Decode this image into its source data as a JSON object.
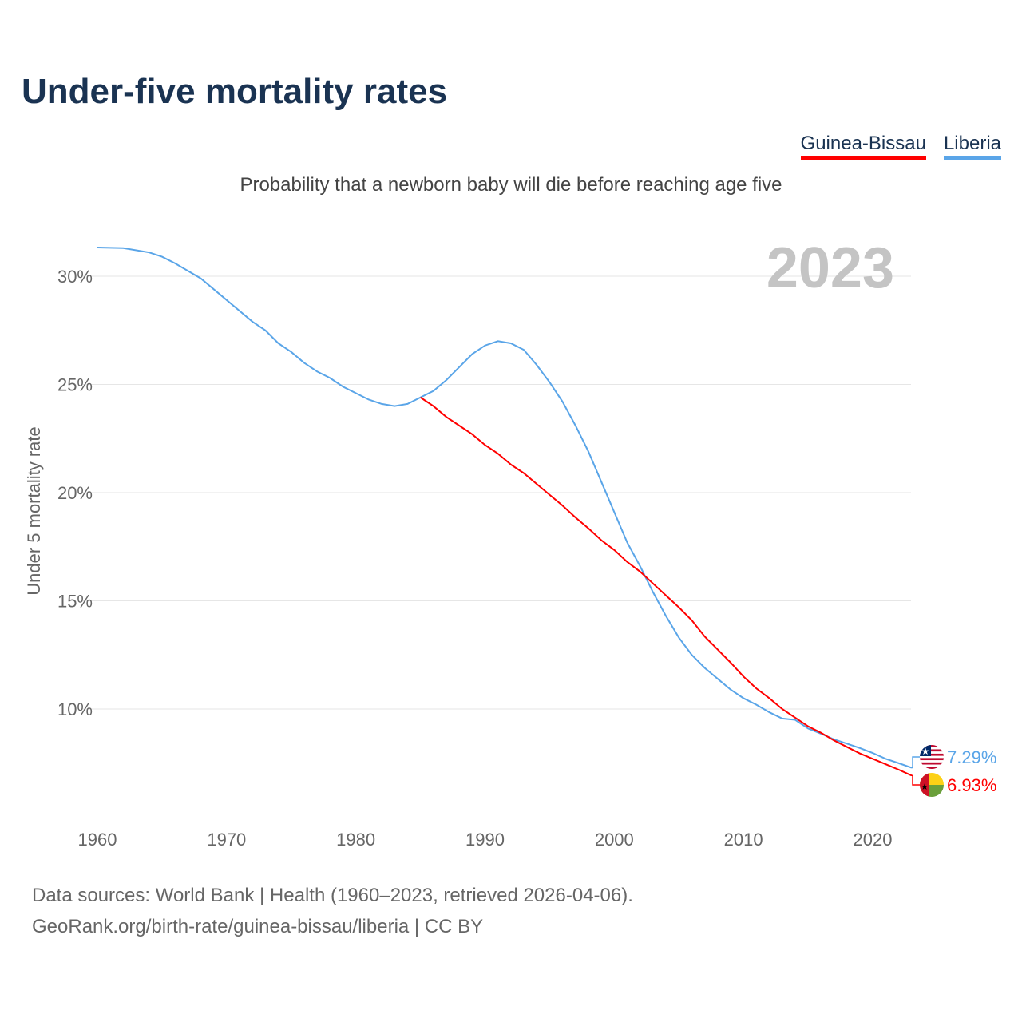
{
  "title": "Under-five mortality rates",
  "subtitle": "Probability that a newborn baby will die before reaching age five",
  "year_label": "2023",
  "footer": {
    "line1": "Data sources: World Bank | Health (1960–2023, retrieved 2026-04-06).",
    "line2": "GeoRank.org/birth-rate/guinea-bissau/liberia | CC BY"
  },
  "chart_data": {
    "type": "line",
    "title": "Under-five mortality rates",
    "xlabel": "",
    "ylabel": "Under 5 mortality rate",
    "xlim": [
      1960,
      2023
    ],
    "ylim": [
      6,
      32
    ],
    "xticks": [
      1960,
      1970,
      1980,
      1990,
      2000,
      2010,
      2020
    ],
    "xtick_labels": [
      "1960",
      "1970",
      "1980",
      "1990",
      "2000",
      "2010",
      "2020"
    ],
    "yticks": [
      10,
      15,
      20,
      25,
      30
    ],
    "ytick_labels": [
      "10%",
      "15%",
      "20%",
      "25%",
      "30%"
    ],
    "legend": "top-right",
    "series": [
      {
        "name": "Guinea-Bissau",
        "color": "#ff0000",
        "end_label": "6.93%",
        "x": [
          1985,
          1986,
          1987,
          1988,
          1989,
          1990,
          1991,
          1992,
          1993,
          1994,
          1995,
          1996,
          1997,
          1998,
          1999,
          2000,
          2001,
          2002,
          2003,
          2004,
          2005,
          2006,
          2007,
          2008,
          2009,
          2010,
          2011,
          2012,
          2013,
          2014,
          2015,
          2016,
          2017,
          2018,
          2019,
          2020,
          2021,
          2022,
          2023
        ],
        "values": [
          24.4,
          24.0,
          23.5,
          23.1,
          22.7,
          22.2,
          21.8,
          21.3,
          20.9,
          20.4,
          19.9,
          19.4,
          18.85,
          18.35,
          17.8,
          17.35,
          16.8,
          16.35,
          15.8,
          15.25,
          14.7,
          14.1,
          13.35,
          12.75,
          12.15,
          11.5,
          10.95,
          10.5,
          10.0,
          9.6,
          9.2,
          8.9,
          8.55,
          8.25,
          7.95,
          7.7,
          7.45,
          7.2,
          6.93
        ]
      },
      {
        "name": "Liberia",
        "color": "#5aa5e8",
        "end_label": "7.29%",
        "x": [
          1960,
          1962,
          1964,
          1965,
          1966,
          1968,
          1970,
          1972,
          1973,
          1974,
          1975,
          1976,
          1977,
          1978,
          1979,
          1980,
          1981,
          1982,
          1983,
          1984,
          1985,
          1986,
          1987,
          1988,
          1989,
          1990,
          1991,
          1992,
          1993,
          1994,
          1995,
          1996,
          1997,
          1998,
          1999,
          2000,
          2001,
          2002,
          2003,
          2004,
          2005,
          2006,
          2007,
          2008,
          2009,
          2010,
          2011,
          2012,
          2013,
          2014,
          2015,
          2016,
          2017,
          2018,
          2019,
          2020,
          2021,
          2022,
          2023
        ],
        "values": [
          31.33,
          31.3,
          31.1,
          30.9,
          30.6,
          29.9,
          28.9,
          27.9,
          27.5,
          26.9,
          26.5,
          26.0,
          25.6,
          25.3,
          24.9,
          24.6,
          24.3,
          24.1,
          24.0,
          24.1,
          24.4,
          24.7,
          25.2,
          25.8,
          26.4,
          26.8,
          27.0,
          26.9,
          26.6,
          25.9,
          25.1,
          24.2,
          23.1,
          21.9,
          20.5,
          19.1,
          17.7,
          16.6,
          15.4,
          14.3,
          13.3,
          12.5,
          11.9,
          11.4,
          10.9,
          10.5,
          10.2,
          9.85,
          9.56,
          9.5,
          9.1,
          8.86,
          8.6,
          8.4,
          8.2,
          7.97,
          7.7,
          7.5,
          7.29
        ]
      }
    ]
  }
}
